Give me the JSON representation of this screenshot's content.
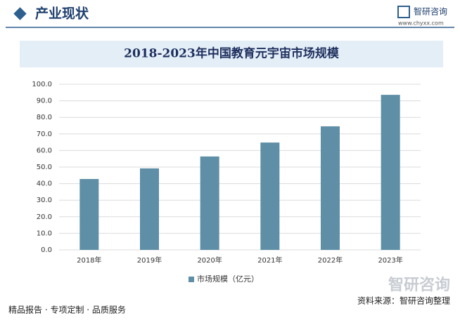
{
  "header": {
    "title": "产业现状",
    "logo": "智研咨询",
    "url": "www.chyxx.com"
  },
  "chart_data": {
    "type": "bar",
    "title": "2018-2023年中国教育元宇宙市场规模",
    "categories": [
      "2018年",
      "2019年",
      "2020年",
      "2021年",
      "2022年",
      "2023年"
    ],
    "series": [
      {
        "name": "市场规模（亿元）",
        "color": "#5e8fa6",
        "values": [
          42.8,
          49.2,
          56.4,
          64.8,
          74.6,
          93.6
        ]
      }
    ],
    "ylim": [
      0,
      100
    ],
    "yticks": [
      {
        "value": 0,
        "label": "0.0"
      },
      {
        "value": 10,
        "label": "10.0"
      },
      {
        "value": 20,
        "label": "20.0"
      },
      {
        "value": 30,
        "label": "30.0"
      },
      {
        "value": 40,
        "label": "40.0"
      },
      {
        "value": 50,
        "label": "50.0"
      },
      {
        "value": 60,
        "label": "60.0"
      },
      {
        "value": 70,
        "label": "70.0"
      },
      {
        "value": 80,
        "label": "80.0"
      },
      {
        "value": 90,
        "label": "90.0"
      },
      {
        "value": 100,
        "label": "100.0"
      }
    ],
    "grid": true
  },
  "footer": {
    "slogan": "精品报告 · 专项定制 · 品质服务",
    "source": "资料来源：智研咨询整理",
    "logo": "智研咨询"
  }
}
